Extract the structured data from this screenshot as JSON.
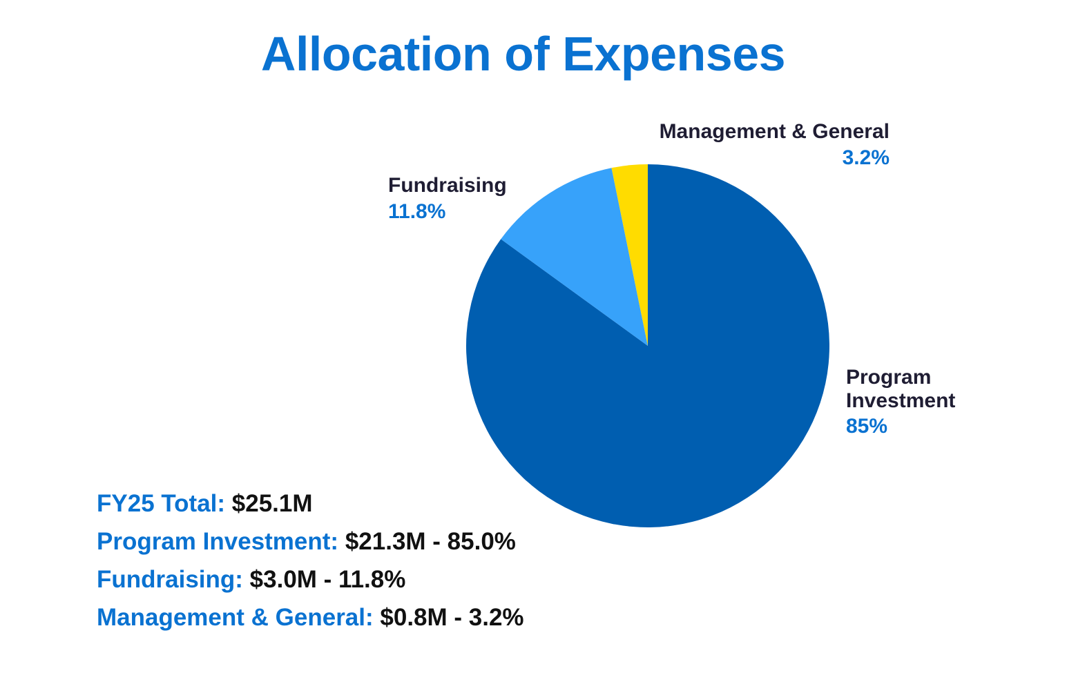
{
  "chart_data": {
    "type": "pie",
    "title": "Allocation of Expenses",
    "slices": [
      {
        "label_line1": "Program",
        "label_line2": "Investment",
        "label": "Program Investment",
        "value": 85.0,
        "pct_label": "85%",
        "color": "#005eb0"
      },
      {
        "label": "Fundraising",
        "value": 11.8,
        "pct_label": "11.8%",
        "color": "#37a2fa"
      },
      {
        "label": "Management & General",
        "value": 3.2,
        "pct_label": "3.2%",
        "color": "#ffdc00"
      }
    ],
    "start_angle_deg": 0,
    "direction": "clockwise"
  },
  "summary": {
    "total": {
      "key": "FY25 Total:",
      "value": "$25.1M"
    },
    "rows": [
      {
        "key": "Program Investment:",
        "value": "$21.3M - 85.0%"
      },
      {
        "key": "Fundraising:",
        "value": "$3.0M - 11.8%"
      },
      {
        "key": "Management & General:",
        "value": "$0.8M - 3.2%"
      }
    ]
  },
  "colors": {
    "accent": "#0a72d1",
    "label_text": "#1f1d33"
  }
}
